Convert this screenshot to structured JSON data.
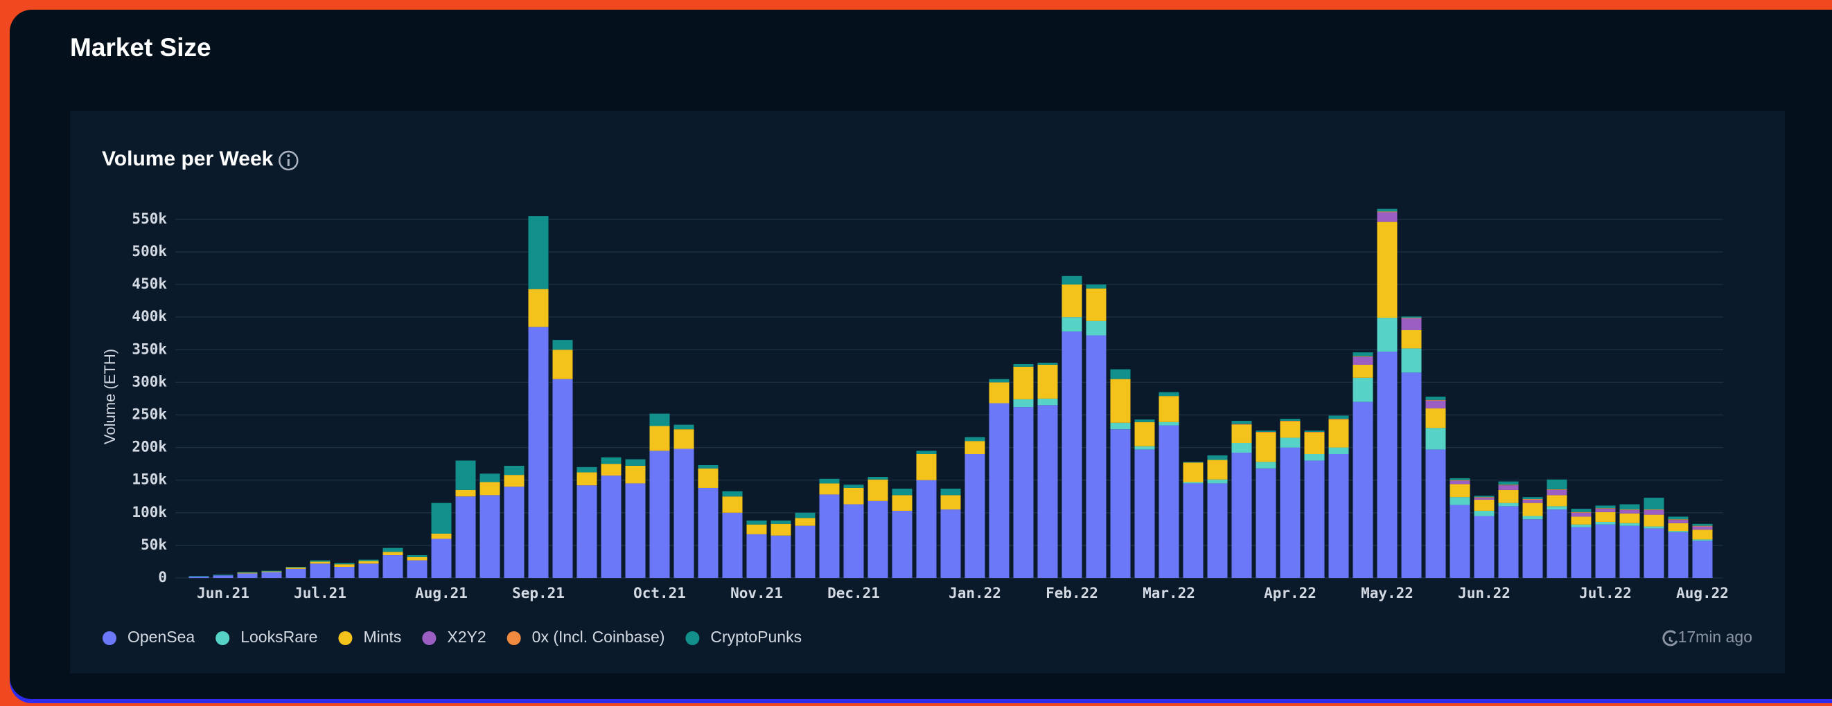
{
  "header": {
    "title": "Market Size"
  },
  "status": {
    "updated": "17min ago"
  },
  "chart_data": {
    "type": "stacked_bar",
    "title": "Volume per Week",
    "y_label": "Volume (ETH)",
    "categories": [
      null,
      "Jun.21",
      null,
      null,
      null,
      "Jul.21",
      null,
      null,
      null,
      null,
      "Aug.21",
      null,
      null,
      null,
      "Sep.21",
      null,
      null,
      null,
      null,
      "Oct.21",
      null,
      null,
      null,
      "Nov.21",
      null,
      null,
      null,
      "Dec.21",
      null,
      null,
      null,
      null,
      "Jan.22",
      null,
      null,
      null,
      "Feb.22",
      null,
      null,
      null,
      "Mar.22",
      null,
      null,
      null,
      null,
      "Apr.22",
      null,
      null,
      null,
      "May.22",
      null,
      null,
      null,
      "Jun.22",
      null,
      null,
      null,
      null,
      "Jul.22",
      null,
      null,
      null,
      "Aug.22"
    ],
    "ylim": [
      0,
      570000
    ],
    "yticks": [
      0,
      {
        "value": 50000,
        "label": "50k"
      },
      {
        "value": 100000,
        "label": "100k"
      },
      {
        "value": 150000,
        "label": "150k"
      },
      {
        "value": 200000,
        "label": "200k"
      },
      {
        "value": 250000,
        "label": "250k"
      },
      {
        "value": 300000,
        "label": "300k"
      },
      {
        "value": 350000,
        "label": "350k"
      },
      {
        "value": 400000,
        "label": "400k"
      },
      {
        "value": 450000,
        "label": "450k"
      },
      {
        "value": 500000,
        "label": "500k"
      },
      {
        "value": 550000,
        "label": "550k"
      }
    ],
    "grid": true,
    "legend": "bottom-left",
    "series": [
      {
        "name": "OpenSea",
        "color": "#6b78f7",
        "values": [
          2000,
          4000,
          7000,
          9000,
          14000,
          22000,
          17000,
          22000,
          35000,
          27000,
          60000,
          125000,
          127000,
          140000,
          385000,
          305000,
          142000,
          157000,
          145000,
          195000,
          198000,
          138000,
          100000,
          67000,
          65000,
          80000,
          128000,
          113000,
          118000,
          103000,
          150000,
          105000,
          190000,
          268000,
          262000,
          265000,
          378000,
          372000,
          228000,
          197000,
          234000,
          145000,
          145000,
          192000,
          168000,
          200000,
          180000,
          190000,
          270000,
          347000,
          315000,
          197000,
          112000,
          95000,
          110000,
          90000,
          105000,
          78000,
          82000,
          80000,
          76000,
          70000,
          57000
        ]
      },
      {
        "name": "LooksRare",
        "color": "#56d3c6",
        "values": [
          0,
          0,
          0,
          0,
          0,
          0,
          0,
          0,
          0,
          0,
          0,
          0,
          0,
          0,
          0,
          0,
          0,
          0,
          0,
          0,
          0,
          0,
          0,
          0,
          0,
          0,
          0,
          0,
          0,
          0,
          0,
          0,
          0,
          0,
          12000,
          10000,
          22000,
          22000,
          10000,
          5000,
          5000,
          2000,
          6000,
          15000,
          10000,
          15000,
          10000,
          10000,
          37000,
          52000,
          37000,
          33000,
          12000,
          8000,
          5000,
          5000,
          5000,
          4000,
          4000,
          4000,
          3000,
          2000,
          2000
        ]
      },
      {
        "name": "Mints",
        "color": "#f3c21b",
        "values": [
          0,
          0,
          1000,
          1000,
          2000,
          3000,
          4000,
          4000,
          5000,
          5000,
          8000,
          10000,
          20000,
          18000,
          58000,
          45000,
          20000,
          18000,
          27000,
          38000,
          30000,
          30000,
          25000,
          15000,
          18000,
          12000,
          17000,
          25000,
          33000,
          24000,
          40000,
          22000,
          20000,
          32000,
          50000,
          52000,
          50000,
          50000,
          67000,
          37000,
          40000,
          30000,
          30000,
          28000,
          45000,
          25000,
          33000,
          43000,
          20000,
          147000,
          28000,
          30000,
          20000,
          17000,
          20000,
          20000,
          17000,
          12000,
          15000,
          15000,
          18000,
          12000,
          15000
        ]
      },
      {
        "name": "X2Y2",
        "color": "#9b5fc4",
        "values": [
          0,
          0,
          0,
          0,
          0,
          0,
          0,
          0,
          0,
          0,
          0,
          0,
          0,
          0,
          0,
          0,
          0,
          0,
          0,
          0,
          0,
          0,
          0,
          0,
          0,
          0,
          0,
          0,
          0,
          0,
          0,
          0,
          0,
          0,
          0,
          0,
          0,
          0,
          0,
          0,
          0,
          0,
          0,
          0,
          0,
          0,
          0,
          0,
          12000,
          15000,
          18000,
          12000,
          5000,
          3000,
          7000,
          5000,
          8000,
          6000,
          5000,
          5000,
          7000,
          5000,
          5000
        ]
      },
      {
        "name": "0x (Incl. Coinbase)",
        "color": "#f08a3e",
        "values": [
          0,
          0,
          0,
          0,
          0,
          0,
          0,
          0,
          0,
          0,
          0,
          0,
          0,
          0,
          0,
          0,
          0,
          0,
          0,
          0,
          0,
          0,
          0,
          0,
          0,
          0,
          0,
          0,
          0,
          0,
          0,
          0,
          0,
          0,
          0,
          0,
          0,
          0,
          0,
          0,
          0,
          0,
          0,
          1000,
          1000,
          1000,
          1000,
          1000,
          1000,
          1000,
          1000,
          1000,
          1000,
          1000,
          1000,
          1000,
          1000,
          1000,
          1000,
          1000,
          1000,
          1000,
          1000
        ]
      },
      {
        "name": "CryptoPunks",
        "color": "#11908c",
        "values": [
          1000,
          1000,
          1000,
          1000,
          1000,
          2000,
          2000,
          2000,
          6000,
          3000,
          47000,
          45000,
          13000,
          14000,
          112000,
          15000,
          8000,
          10000,
          10000,
          19000,
          7000,
          5000,
          8000,
          6000,
          5000,
          8000,
          7000,
          5000,
          4000,
          10000,
          5000,
          10000,
          6000,
          5000,
          4000,
          3000,
          13000,
          6000,
          15000,
          4000,
          6000,
          1000,
          7000,
          5000,
          2000,
          3000,
          2000,
          5000,
          6000,
          4000,
          2000,
          5000,
          3000,
          2000,
          5000,
          3000,
          15000,
          5000,
          4000,
          8000,
          18000,
          4000,
          3000
        ]
      }
    ]
  }
}
